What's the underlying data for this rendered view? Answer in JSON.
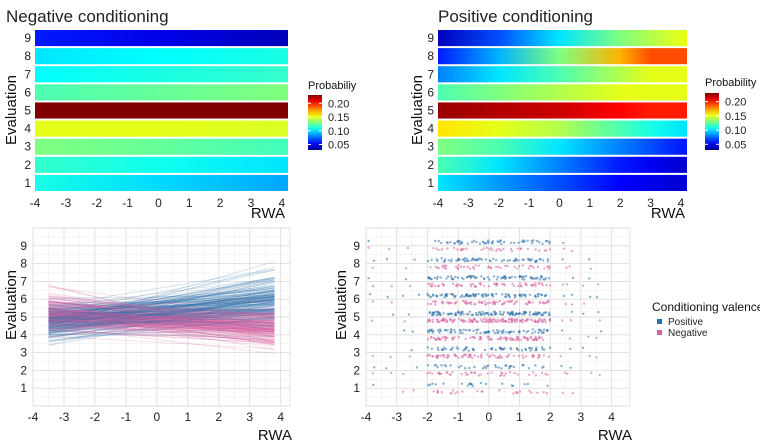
{
  "chart_data": [
    {
      "type": "heatmap",
      "title": "Negative conditioning",
      "xlabel": "RWA",
      "ylabel": "Evaluation",
      "x_ticks": [
        "-4",
        "-3",
        "-2",
        "-1",
        "0",
        "1",
        "2",
        "3",
        "4"
      ],
      "y_ticks": [
        "1",
        "2",
        "3",
        "4",
        "5",
        "6",
        "7",
        "8",
        "9"
      ],
      "xlim": [
        -4,
        4.2
      ],
      "legend_title": "Probabiliy",
      "legend_ticks": [
        "0.20",
        "0.15",
        "0.10",
        "0.05"
      ],
      "color_range": [
        0.03,
        0.23
      ],
      "x_samples": [
        -4,
        0,
        4
      ],
      "rows": [
        {
          "evaluation": 1,
          "values": [
            0.11,
            0.098,
            0.088
          ]
        },
        {
          "evaluation": 2,
          "values": [
            0.115,
            0.108,
            0.1
          ]
        },
        {
          "evaluation": 3,
          "values": [
            0.13,
            0.125,
            0.118
          ]
        },
        {
          "evaluation": 4,
          "values": [
            0.15,
            0.15,
            0.148
          ]
        },
        {
          "evaluation": 5,
          "values": [
            0.23,
            0.23,
            0.23
          ]
        },
        {
          "evaluation": 6,
          "values": [
            0.12,
            0.125,
            0.13
          ]
        },
        {
          "evaluation": 7,
          "values": [
            0.105,
            0.11,
            0.115
          ]
        },
        {
          "evaluation": 8,
          "values": [
            0.1,
            0.105,
            0.11
          ]
        },
        {
          "evaluation": 9,
          "values": [
            0.06,
            0.05,
            0.04
          ]
        }
      ]
    },
    {
      "type": "heatmap",
      "title": "Positive conditioning",
      "xlabel": "RWA",
      "ylabel": "Evaluation",
      "x_ticks": [
        "-4",
        "-3",
        "-2",
        "-1",
        "0",
        "1",
        "2",
        "3",
        "4"
      ],
      "y_ticks": [
        "1",
        "2",
        "3",
        "4",
        "5",
        "6",
        "7",
        "8",
        "9"
      ],
      "xlim": [
        -4,
        4.2
      ],
      "legend_title": "Probability",
      "legend_ticks": [
        "0.20",
        "0.15",
        "0.10",
        "0.05"
      ],
      "color_range": [
        0.03,
        0.23
      ],
      "x_samples": [
        -4,
        -2,
        0,
        2,
        3,
        4
      ],
      "rows": [
        {
          "evaluation": 1,
          "values": [
            0.1,
            0.085,
            0.07,
            0.055,
            0.05,
            0.045
          ]
        },
        {
          "evaluation": 2,
          "values": [
            0.12,
            0.1,
            0.08,
            0.06,
            0.052,
            0.045
          ]
        },
        {
          "evaluation": 3,
          "values": [
            0.13,
            0.12,
            0.1,
            0.08,
            0.07,
            0.06
          ]
        },
        {
          "evaluation": 4,
          "values": [
            0.16,
            0.15,
            0.14,
            0.12,
            0.11,
            0.1
          ]
        },
        {
          "evaluation": 5,
          "values": [
            0.225,
            0.22,
            0.215,
            0.205,
            0.2,
            0.2
          ]
        },
        {
          "evaluation": 6,
          "values": [
            0.12,
            0.13,
            0.14,
            0.15,
            0.15,
            0.15
          ]
        },
        {
          "evaluation": 7,
          "values": [
            0.08,
            0.1,
            0.12,
            0.14,
            0.15,
            0.15
          ]
        },
        {
          "evaluation": 8,
          "values": [
            0.06,
            0.09,
            0.13,
            0.17,
            0.19,
            0.19
          ]
        },
        {
          "evaluation": 9,
          "values": [
            0.04,
            0.07,
            0.1,
            0.13,
            0.14,
            0.15
          ]
        }
      ]
    },
    {
      "type": "line",
      "title": "",
      "xlabel": "RWA",
      "ylabel": "Evaluation",
      "x_ticks": [
        "-4",
        "-3",
        "-2",
        "-1",
        "0",
        "1",
        "2",
        "3",
        "4"
      ],
      "y_ticks": [
        "1",
        "2",
        "3",
        "4",
        "5",
        "6",
        "7",
        "8",
        "9"
      ],
      "xlim": [
        -4,
        4.3
      ],
      "ylim": [
        0,
        10
      ],
      "x_range": [
        -3.5,
        3.8
      ],
      "series": [
        {
          "group": "Positive",
          "color": "#2a6fa8",
          "opacity": 0.22,
          "left_mean": 4.7,
          "left_sd": 0.75,
          "right_mean": 6.0,
          "right_sd": 0.9
        },
        {
          "group": "Negative",
          "color": "#d6609f",
          "opacity": 0.25,
          "left_mean": 5.2,
          "left_sd": 0.8,
          "right_mean": 4.4,
          "right_sd": 0.7
        }
      ]
    },
    {
      "type": "scatter",
      "title": "",
      "xlabel": "RWA",
      "ylabel": "Evaluation",
      "x_ticks": [
        "-4",
        "-3",
        "-2",
        "-1",
        "0",
        "1",
        "2",
        "3",
        "4"
      ],
      "y_ticks": [
        "1",
        "2",
        "3",
        "4",
        "5",
        "6",
        "7",
        "8",
        "9"
      ],
      "xlim": [
        -4,
        4.6
      ],
      "ylim": [
        0,
        10
      ],
      "jitter": 0.2,
      "legend_title": "Conditioning valence",
      "series": [
        {
          "name": "Positive",
          "color": "#2a6fa8",
          "y_offset": 0.2
        },
        {
          "name": "Negative",
          "color": "#d6609f",
          "y_offset": -0.2
        }
      ],
      "core_range": [
        -2.0,
        2.0
      ],
      "outlier_x": [
        -3.8,
        -3.2,
        -2.7,
        -2.4,
        2.4,
        2.7,
        3.2,
        3.6
      ],
      "densities": [
        {
          "evaluation": 1,
          "positive": 20,
          "negative": 25
        },
        {
          "evaluation": 2,
          "positive": 35,
          "negative": 40
        },
        {
          "evaluation": 3,
          "positive": 55,
          "negative": 70
        },
        {
          "evaluation": 4,
          "positive": 80,
          "negative": 85
        },
        {
          "evaluation": 5,
          "positive": 120,
          "negative": 130
        },
        {
          "evaluation": 6,
          "positive": 90,
          "negative": 75
        },
        {
          "evaluation": 7,
          "positive": 75,
          "negative": 60
        },
        {
          "evaluation": 8,
          "positive": 65,
          "negative": 45
        },
        {
          "evaluation": 9,
          "positive": 55,
          "negative": 35
        }
      ]
    }
  ]
}
